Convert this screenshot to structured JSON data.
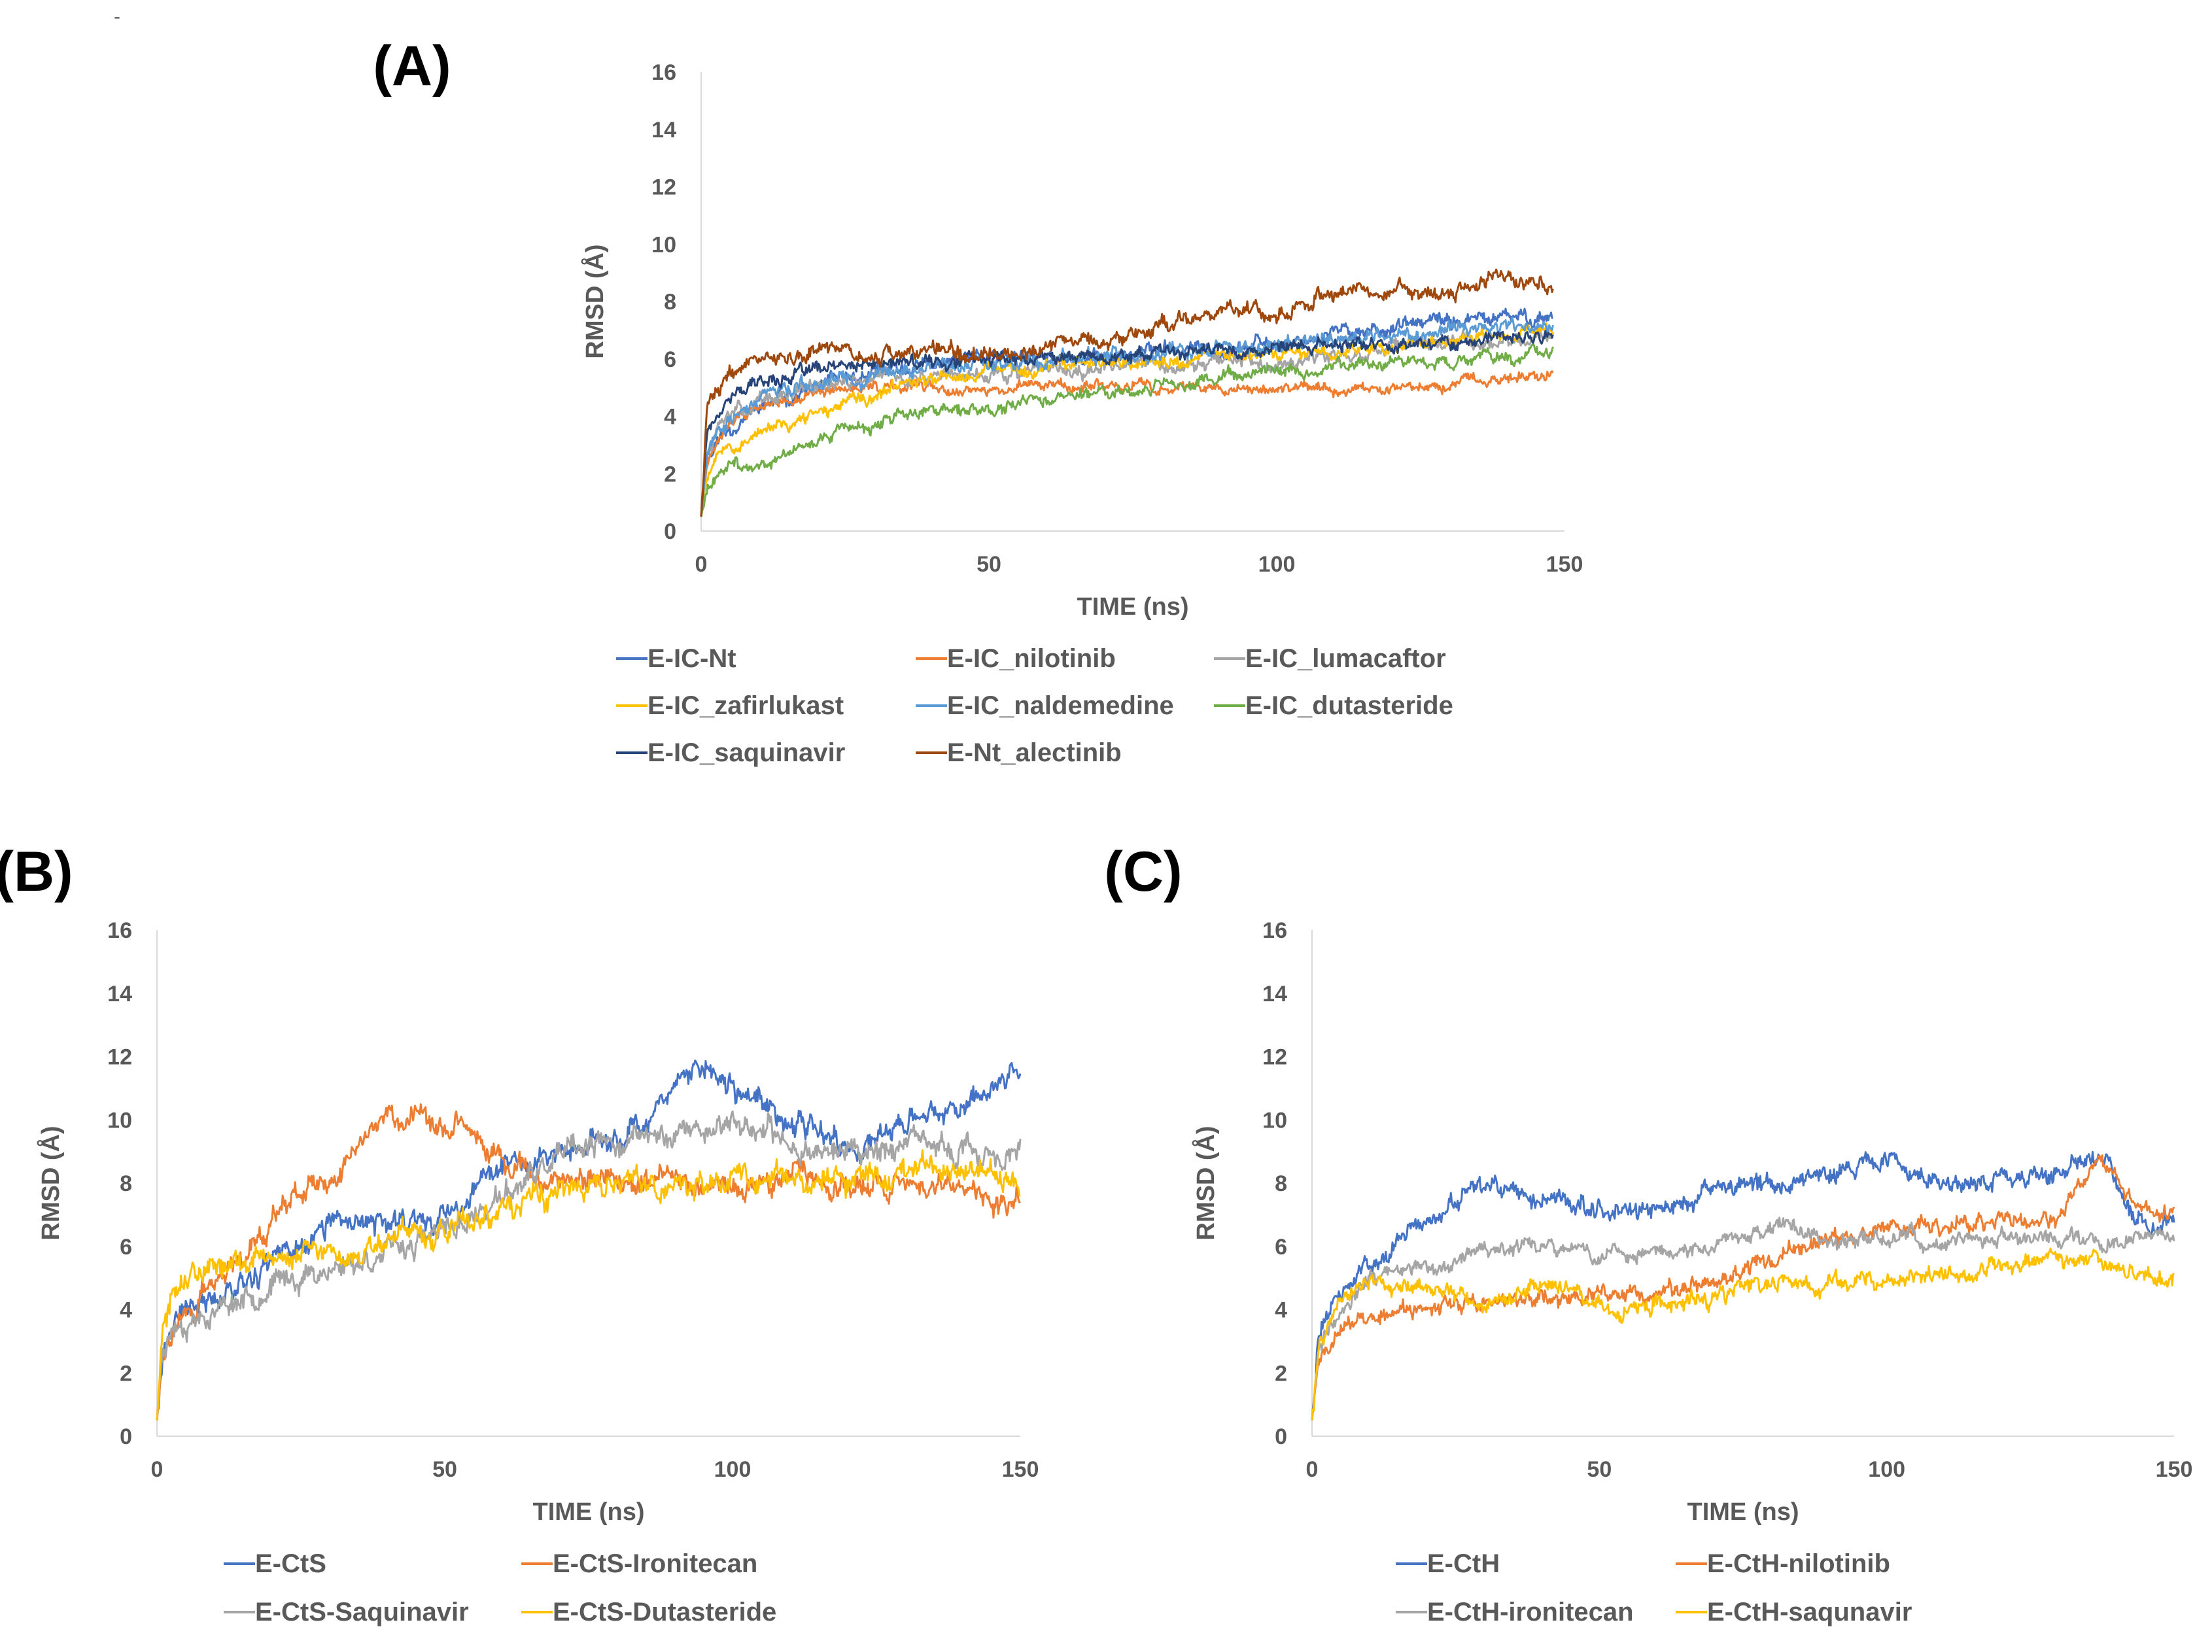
{
  "chart_data": [
    {
      "panel_label": "(A)",
      "type": "line",
      "xlabel": "TIME (ns)",
      "ylabel": "RMSD (Å)",
      "xlim": [
        0,
        150
      ],
      "ylim": [
        0,
        16
      ],
      "xticks": [
        "0",
        "50",
        "100",
        "150"
      ],
      "yticks": [
        "0",
        "2",
        "4",
        "6",
        "8",
        "10",
        "12",
        "14",
        "16"
      ],
      "grid": false,
      "legend_position": "bottom",
      "x": [
        0,
        1,
        3,
        5,
        10,
        20,
        30,
        40,
        50,
        60,
        70,
        80,
        90,
        100,
        110,
        120,
        130,
        140,
        148
      ],
      "series": [
        {
          "name": "E-IC-Nt",
          "color": "#4472c4",
          "noise": 0.2,
          "seed": 11,
          "values": [
            0.5,
            2.5,
            3.2,
            3.6,
            4.3,
            5.0,
            5.5,
            5.8,
            6.0,
            6.0,
            6.1,
            6.3,
            6.4,
            6.5,
            6.9,
            7.1,
            7.3,
            7.4,
            7.5
          ]
        },
        {
          "name": "E-IC_nilotinib",
          "color": "#ed7d31",
          "noise": 0.15,
          "seed": 12,
          "values": [
            0.5,
            2.4,
            3.1,
            3.8,
            4.3,
            4.8,
            5.0,
            5.0,
            4.9,
            5.1,
            5.0,
            5.0,
            5.0,
            4.9,
            5.0,
            5.0,
            5.1,
            5.3,
            5.5
          ]
        },
        {
          "name": "E-IC_lumacaftor",
          "color": "#a5a5a5",
          "noise": 0.2,
          "seed": 13,
          "values": [
            0.5,
            2.6,
            3.5,
            4.0,
            4.5,
            5.0,
            5.3,
            5.4,
            5.5,
            5.5,
            5.6,
            5.8,
            5.9,
            6.0,
            6.1,
            6.3,
            6.5,
            6.7,
            6.8
          ]
        },
        {
          "name": "E-IC_zafirlukast",
          "color": "#ffc000",
          "noise": 0.18,
          "seed": 14,
          "values": [
            0.5,
            2.0,
            2.6,
            3.0,
            3.4,
            4.0,
            4.8,
            5.3,
            5.6,
            5.7,
            5.8,
            5.9,
            6.0,
            6.1,
            6.2,
            6.4,
            6.6,
            6.8,
            7.0
          ]
        },
        {
          "name": "E-IC_naldemedine",
          "color": "#5b9bd5",
          "noise": 0.2,
          "seed": 15,
          "values": [
            0.5,
            2.8,
            3.4,
            3.8,
            4.6,
            5.2,
            5.5,
            5.7,
            5.8,
            6.0,
            6.1,
            6.2,
            6.4,
            6.5,
            6.7,
            6.9,
            7.0,
            7.1,
            7.2
          ]
        },
        {
          "name": "E-IC_dutasteride",
          "color": "#70ad47",
          "noise": 0.18,
          "seed": 16,
          "values": [
            0.5,
            1.6,
            2.0,
            2.2,
            2.3,
            3.3,
            3.8,
            4.1,
            4.3,
            4.5,
            4.7,
            5.0,
            5.3,
            5.6,
            5.7,
            5.9,
            6.0,
            6.1,
            6.2
          ]
        },
        {
          "name": "E-IC_saquinavir",
          "color": "#264478",
          "noise": 0.18,
          "seed": 17,
          "values": [
            0.5,
            3.5,
            4.2,
            4.7,
            5.2,
            5.6,
            5.8,
            5.9,
            6.0,
            6.1,
            6.1,
            6.2,
            6.3,
            6.3,
            6.5,
            6.5,
            6.6,
            6.7,
            6.8
          ]
        },
        {
          "name": "E-Nt_alectinib",
          "color": "#9e480e",
          "noise": 0.22,
          "seed": 18,
          "values": [
            0.5,
            4.5,
            5.0,
            5.5,
            6.0,
            6.3,
            6.1,
            6.3,
            6.1,
            6.3,
            6.6,
            7.0,
            7.8,
            7.6,
            8.5,
            8.3,
            8.4,
            8.9,
            8.4
          ]
        }
      ]
    },
    {
      "panel_label": "(B)",
      "type": "line",
      "xlabel": "TIME (ns)",
      "ylabel": "RMSD (Å)",
      "xlim": [
        0,
        150
      ],
      "ylim": [
        0,
        16
      ],
      "xticks": [
        "0",
        "50",
        "100",
        "150"
      ],
      "yticks": [
        "0",
        "2",
        "4",
        "6",
        "8",
        "10",
        "12",
        "14",
        "16"
      ],
      "grid": false,
      "legend_position": "bottom",
      "x": [
        0,
        1,
        3,
        5,
        10,
        20,
        30,
        40,
        50,
        60,
        70,
        80,
        90,
        95,
        100,
        110,
        120,
        130,
        140,
        150
      ],
      "series": [
        {
          "name": "E-CtS",
          "color": "#4472c4",
          "noise": 0.3,
          "seed": 21,
          "values": [
            0.5,
            2.8,
            3.6,
            4.0,
            4.5,
            5.5,
            6.6,
            6.8,
            7.0,
            8.5,
            9.0,
            9.4,
            11.0,
            11.6,
            11.0,
            10.0,
            9.0,
            9.8,
            10.5,
            11.8
          ]
        },
        {
          "name": "E-CtS-Ironitecan",
          "color": "#ed7d31",
          "noise": 0.3,
          "seed": 22,
          "values": [
            0.5,
            2.5,
            3.4,
            3.9,
            4.8,
            7.0,
            8.3,
            10.1,
            9.8,
            8.8,
            8.1,
            8.0,
            8.2,
            8.0,
            7.9,
            8.1,
            8.0,
            8.0,
            7.8,
            7.5
          ]
        },
        {
          "name": "E-CtS-Saquinavir",
          "color": "#a5a5a5",
          "noise": 0.3,
          "seed": 23,
          "values": [
            0.5,
            3.0,
            3.5,
            3.7,
            4.0,
            4.8,
            5.3,
            5.8,
            6.4,
            7.5,
            8.8,
            9.3,
            9.6,
            9.7,
            10.0,
            9.2,
            9.0,
            9.2,
            9.0,
            8.8
          ]
        },
        {
          "name": "E-CtS-Dutasteride",
          "color": "#ffc000",
          "noise": 0.3,
          "seed": 24,
          "values": [
            0.5,
            3.5,
            4.6,
            5.1,
            5.4,
            5.6,
            5.9,
            6.2,
            6.4,
            7.2,
            7.8,
            8.0,
            8.0,
            8.1,
            8.0,
            8.1,
            8.2,
            8.3,
            8.5,
            7.8
          ]
        }
      ]
    },
    {
      "panel_label": "(C)",
      "type": "line",
      "xlabel": "TIME (ns)",
      "ylabel": "RMSD (Å)",
      "xlim": [
        0,
        150
      ],
      "ylim": [
        0,
        16
      ],
      "xticks": [
        "0",
        "50",
        "100",
        "150"
      ],
      "yticks": [
        "0",
        "2",
        "4",
        "6",
        "8",
        "10",
        "12",
        "14",
        "16"
      ],
      "grid": false,
      "legend_position": "bottom",
      "x": [
        0,
        1,
        3,
        5,
        10,
        20,
        30,
        40,
        50,
        60,
        70,
        80,
        90,
        100,
        110,
        120,
        130,
        137,
        143,
        150
      ],
      "series": [
        {
          "name": "E-CtH",
          "color": "#4472c4",
          "noise": 0.25,
          "seed": 31,
          "values": [
            0.5,
            3.0,
            4.0,
            4.5,
            5.5,
            6.8,
            7.8,
            7.5,
            7.3,
            7.0,
            7.8,
            8.0,
            8.5,
            8.6,
            8.0,
            8.2,
            8.3,
            9.0,
            7.0,
            6.8
          ]
        },
        {
          "name": "E-CtH-nilotinib",
          "color": "#ed7d31",
          "noise": 0.22,
          "seed": 32,
          "values": [
            0.5,
            2.2,
            2.8,
            3.3,
            3.8,
            4.0,
            4.2,
            4.3,
            4.4,
            4.6,
            4.8,
            5.6,
            6.2,
            6.5,
            6.6,
            6.8,
            6.7,
            9.0,
            7.3,
            7.0
          ]
        },
        {
          "name": "E-CtH-ironitecan",
          "color": "#a5a5a5",
          "noise": 0.2,
          "seed": 33,
          "values": [
            0.5,
            2.5,
            3.5,
            4.2,
            5.0,
            5.5,
            5.8,
            5.9,
            5.7,
            5.8,
            6.0,
            6.6,
            6.3,
            6.3,
            6.2,
            6.2,
            6.3,
            6.2,
            6.2,
            6.4
          ]
        },
        {
          "name": "E-CtH-saqunavir",
          "color": "#ffc000",
          "noise": 0.22,
          "seed": 34,
          "values": [
            0.5,
            2.6,
            3.7,
            4.3,
            4.8,
            4.6,
            4.2,
            4.8,
            4.2,
            4.1,
            4.3,
            4.8,
            4.8,
            4.9,
            5.2,
            5.4,
            5.5,
            5.7,
            5.2,
            5.0
          ]
        }
      ]
    }
  ],
  "blank_mark": "-"
}
